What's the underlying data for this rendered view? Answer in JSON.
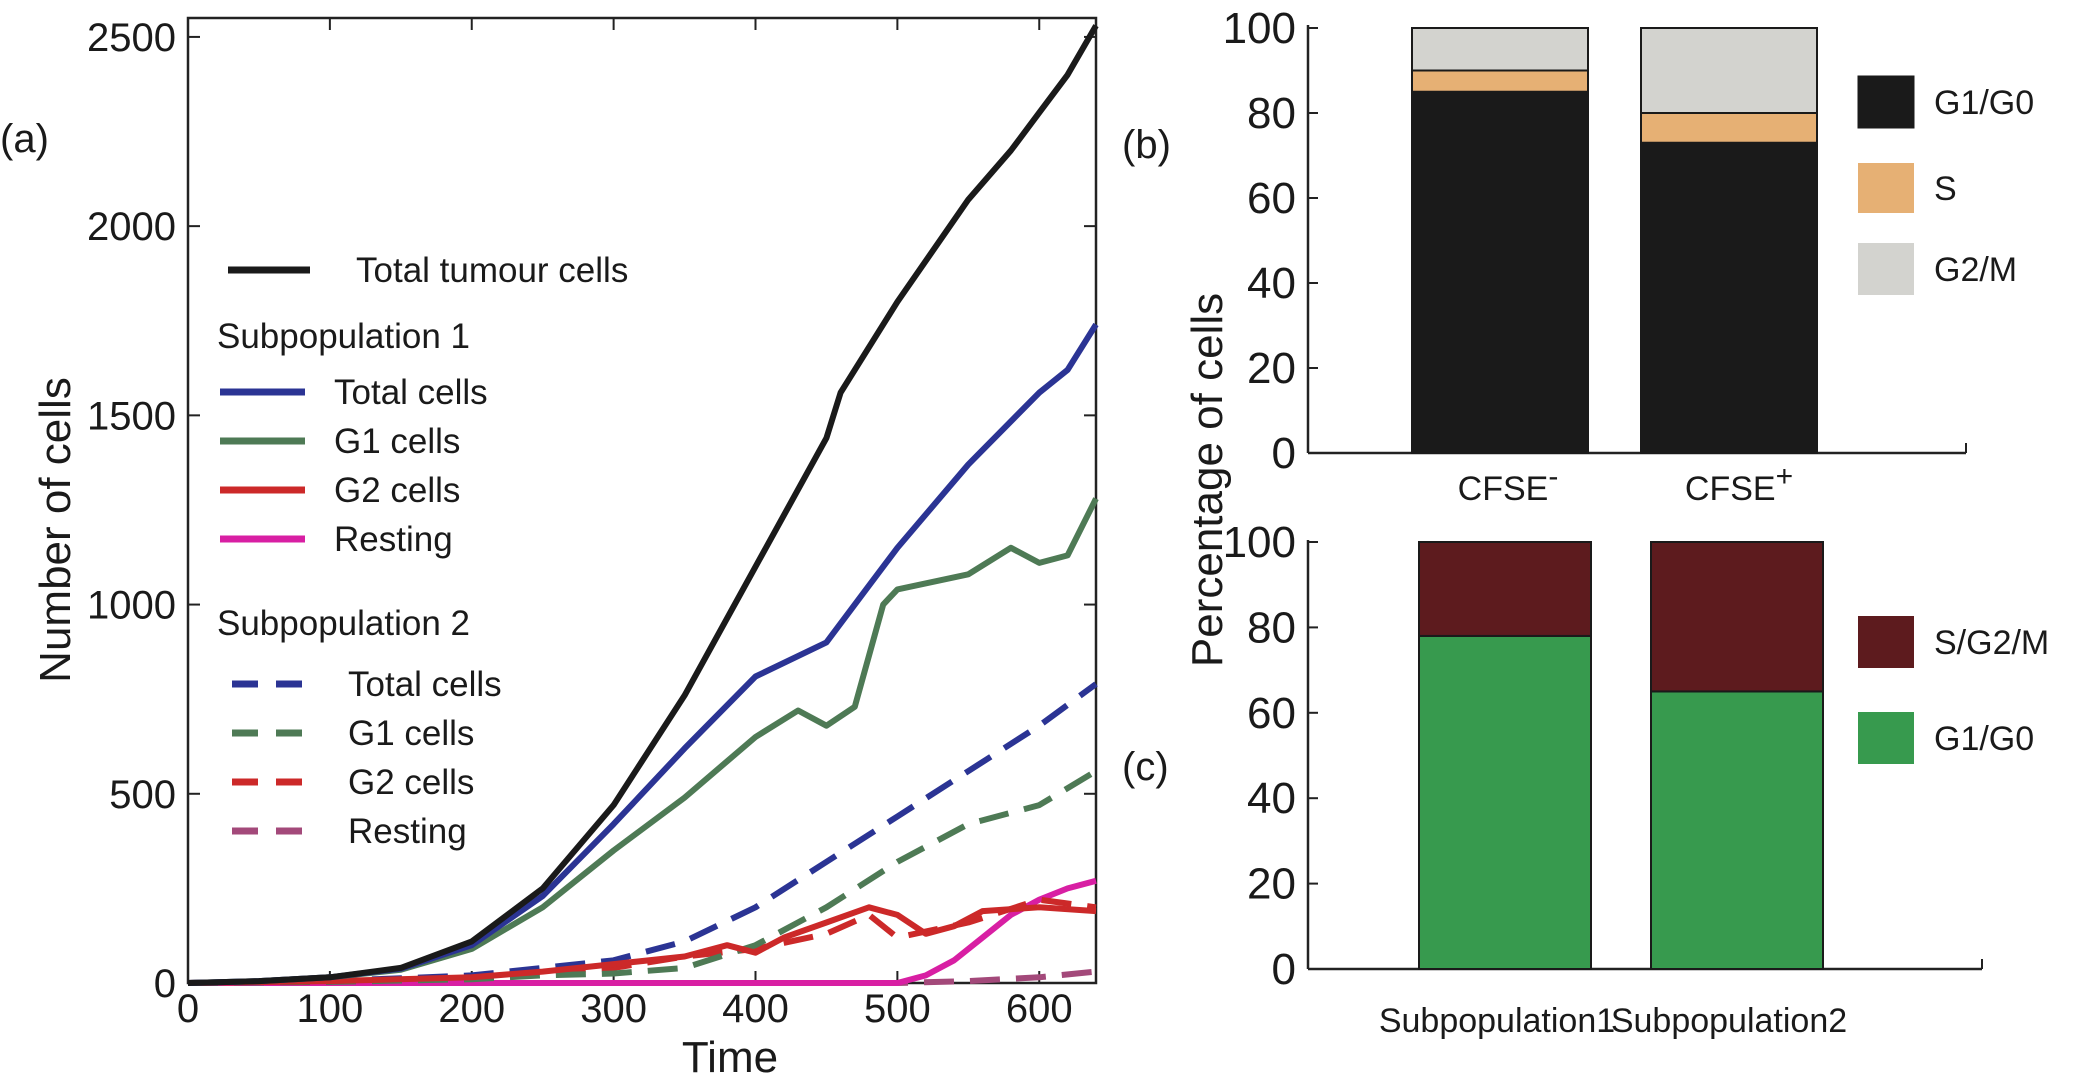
{
  "panels": {
    "a": "(a)",
    "b": "(b)",
    "c": "(c)"
  },
  "chart_data": [
    {
      "id": "a",
      "type": "line",
      "xlabel": "Time",
      "ylabel": "Number of cells",
      "xlim": [
        0,
        640
      ],
      "ylim": [
        0,
        2550
      ],
      "xticks": [
        0,
        100,
        200,
        300,
        400,
        500,
        600
      ],
      "yticks": [
        0,
        500,
        1000,
        1500,
        2000,
        2500
      ],
      "legend": {
        "total_label": "Total tumour cells",
        "group1_title": "Subpopulation 1",
        "group2_title": "Subpopulation 2"
      },
      "series": [
        {
          "name": "Total tumour cells",
          "group": "total",
          "color": "#1a1a1a",
          "dash": false,
          "x": [
            0,
            50,
            100,
            150,
            200,
            250,
            300,
            350,
            400,
            450,
            460,
            500,
            550,
            580,
            600,
            620,
            640
          ],
          "y": [
            0,
            5,
            15,
            40,
            110,
            250,
            470,
            760,
            1100,
            1440,
            1560,
            1800,
            2070,
            2200,
            2300,
            2400,
            2530
          ]
        },
        {
          "name": "Total cells",
          "group": "Subpopulation 1",
          "color": "#2b3494",
          "dash": false,
          "x": [
            0,
            50,
            100,
            150,
            200,
            250,
            300,
            350,
            400,
            450,
            480,
            500,
            550,
            600,
            620,
            640
          ],
          "y": [
            0,
            5,
            15,
            38,
            100,
            230,
            420,
            620,
            810,
            900,
            1050,
            1150,
            1370,
            1560,
            1620,
            1740
          ]
        },
        {
          "name": "G1 cells",
          "group": "Subpopulation 1",
          "color": "#4e7a55",
          "dash": false,
          "x": [
            0,
            50,
            100,
            150,
            200,
            250,
            300,
            350,
            400,
            430,
            450,
            470,
            490,
            500,
            550,
            580,
            600,
            620,
            640
          ],
          "y": [
            0,
            5,
            15,
            35,
            90,
            200,
            350,
            490,
            650,
            720,
            680,
            730,
            1000,
            1040,
            1080,
            1150,
            1110,
            1130,
            1280
          ]
        },
        {
          "name": "G2 cells",
          "group": "Subpopulation 1",
          "color": "#cc2929",
          "dash": false,
          "x": [
            0,
            100,
            200,
            250,
            300,
            350,
            380,
            400,
            420,
            450,
            480,
            500,
            520,
            540,
            560,
            600,
            640
          ],
          "y": [
            0,
            5,
            15,
            30,
            50,
            70,
            100,
            80,
            120,
            160,
            200,
            180,
            130,
            150,
            190,
            200,
            190
          ]
        },
        {
          "name": "Resting",
          "group": "Subpopulation 1",
          "color": "#d81fa3",
          "dash": false,
          "x": [
            0,
            100,
            200,
            300,
            400,
            500,
            520,
            540,
            560,
            580,
            600,
            620,
            640
          ],
          "y": [
            0,
            0,
            0,
            0,
            0,
            0,
            20,
            60,
            120,
            180,
            220,
            250,
            270
          ]
        },
        {
          "name": "Total cells",
          "group": "Subpopulation 2",
          "color": "#2b3494",
          "dash": true,
          "x": [
            0,
            100,
            200,
            250,
            300,
            350,
            400,
            450,
            500,
            550,
            600,
            640
          ],
          "y": [
            0,
            5,
            20,
            40,
            60,
            110,
            200,
            320,
            440,
            560,
            680,
            790
          ]
        },
        {
          "name": "G1 cells",
          "group": "Subpopulation 2",
          "color": "#4e7a55",
          "dash": true,
          "x": [
            0,
            100,
            200,
            250,
            300,
            350,
            400,
            450,
            500,
            550,
            600,
            640
          ],
          "y": [
            0,
            3,
            10,
            20,
            25,
            40,
            100,
            200,
            320,
            420,
            470,
            560
          ]
        },
        {
          "name": "G2 cells",
          "group": "Subpopulation 2",
          "color": "#cc2929",
          "dash": true,
          "x": [
            0,
            100,
            200,
            250,
            300,
            350,
            400,
            450,
            480,
            500,
            550,
            600,
            640
          ],
          "y": [
            0,
            5,
            15,
            30,
            40,
            70,
            90,
            130,
            180,
            120,
            160,
            220,
            200
          ]
        },
        {
          "name": "Resting",
          "group": "Subpopulation 2",
          "color": "#a3497a",
          "dash": true,
          "x": [
            0,
            100,
            200,
            300,
            400,
            500,
            550,
            600,
            640
          ],
          "y": [
            0,
            0,
            0,
            0,
            0,
            0,
            5,
            15,
            30
          ]
        }
      ]
    },
    {
      "id": "b",
      "type": "bar",
      "stacked": true,
      "ylabel": "Percentage of cells",
      "ylim": [
        0,
        100
      ],
      "yticks": [
        0,
        20,
        40,
        60,
        80,
        100
      ],
      "categories": [
        {
          "base": "CFSE",
          "sup": "-"
        },
        {
          "base": "CFSE",
          "sup": "+"
        }
      ],
      "series": [
        {
          "name": "G1/G0",
          "color": "#1a1a1a",
          "values": [
            85,
            73
          ]
        },
        {
          "name": "S",
          "color": "#e6b074",
          "values": [
            5,
            7
          ]
        },
        {
          "name": "G2/M",
          "color": "#d3d3cf",
          "values": [
            10,
            20
          ]
        }
      ]
    },
    {
      "id": "c",
      "type": "bar",
      "stacked": true,
      "ylim": [
        0,
        100
      ],
      "yticks": [
        0,
        20,
        40,
        60,
        80,
        100
      ],
      "categories": [
        "Subpopulation1",
        "Subpopulation2"
      ],
      "series": [
        {
          "name": "G1/G0",
          "color": "#379a4e",
          "values": [
            78,
            65
          ]
        },
        {
          "name": "S/G2/M",
          "color": "#5d1b1e",
          "values": [
            22,
            35
          ]
        }
      ]
    }
  ]
}
